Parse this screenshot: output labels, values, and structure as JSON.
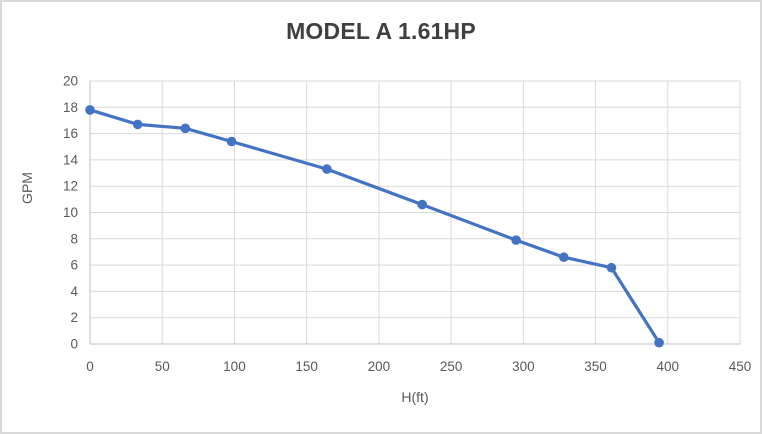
{
  "chart_data": {
    "type": "line",
    "title": "MODEL A 1.61HP",
    "xlabel": "H(ft)",
    "ylabel": "GPM",
    "series": [
      {
        "name": "GPM vs H(ft)",
        "x": [
          0,
          33,
          66,
          98,
          164,
          230,
          295,
          328,
          361,
          394
        ],
        "y": [
          17.8,
          16.7,
          16.4,
          15.4,
          13.3,
          10.6,
          7.9,
          6.6,
          5.8,
          0.1
        ]
      }
    ],
    "xlim": [
      0,
      450
    ],
    "ylim": [
      0,
      20
    ],
    "x_ticks": [
      0,
      50,
      100,
      150,
      200,
      250,
      300,
      350,
      400,
      450
    ],
    "y_ticks": [
      0,
      2,
      4,
      6,
      8,
      10,
      12,
      14,
      16,
      18,
      20
    ],
    "grid": true,
    "legend_position": "none",
    "colors": {
      "line": "#4472C4",
      "marker": "#4472C4",
      "gridline": "#D9D9D9",
      "axis_line": "#BFBFBF",
      "tick_label": "#595959",
      "title": "#404040",
      "axis_title": "#595959",
      "background": "#FFFFFF",
      "border": "#D9D9D9"
    }
  }
}
